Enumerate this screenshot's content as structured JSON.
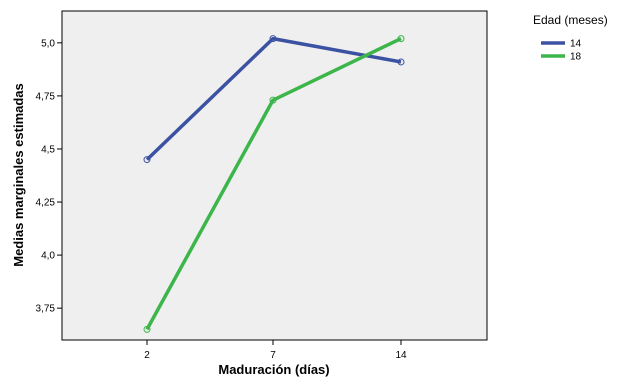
{
  "chart_data": {
    "type": "line",
    "xlabel": "Maduración (días)",
    "ylabel": "Medias marginales estimadas",
    "categories": [
      "2",
      "7",
      "14"
    ],
    "ylim": [
      3.6,
      5.15
    ],
    "yticks": [
      3.75,
      4.0,
      4.25,
      4.5,
      4.75,
      5.0
    ],
    "ytick_labels": [
      "3,75",
      "4,0",
      "4,25",
      "4,5",
      "4,75",
      "5,0"
    ],
    "legend": {
      "title": "Edad (meses)",
      "placement": "right"
    },
    "grid": false,
    "series": [
      {
        "name": "14",
        "values": [
          4.45,
          5.02,
          4.91
        ],
        "color": "#3b52a3"
      },
      {
        "name": "18",
        "values": [
          3.65,
          4.73,
          5.02
        ],
        "color": "#3cb54a"
      }
    ],
    "plot_background": "#efefef"
  }
}
